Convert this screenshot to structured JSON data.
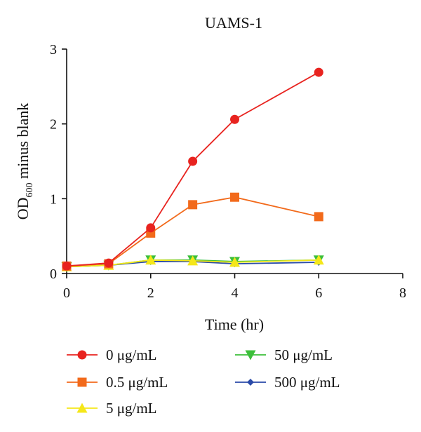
{
  "chart_data": {
    "type": "line",
    "title": "UAMS-1",
    "xlabel": "Time (hr)",
    "ylabel": {
      "main": "OD",
      "subscript": "600",
      "rest": " minus blank"
    },
    "xlim": [
      0,
      8
    ],
    "ylim": [
      0,
      3
    ],
    "xticks": [
      "0",
      "2",
      "4",
      "6",
      "8"
    ],
    "yticks": [
      "0",
      "1",
      "2",
      "3"
    ],
    "legend_position": "bottom",
    "series": [
      {
        "name": "0 μg/mL",
        "color": "#e8231f",
        "marker": "circle",
        "x": [
          0,
          1,
          2,
          3,
          4,
          6
        ],
        "y": [
          0.1,
          0.14,
          0.61,
          1.5,
          2.06,
          2.69
        ]
      },
      {
        "name": "0.5 μg/mL",
        "color": "#f26a1b",
        "marker": "square",
        "x": [
          0,
          1,
          2,
          3,
          4,
          6
        ],
        "y": [
          0.1,
          0.13,
          0.54,
          0.92,
          1.02,
          0.76
        ]
      },
      {
        "name": "5 μg/mL",
        "color": "#f5e71a",
        "marker": "triangle-up",
        "x": [
          0,
          1,
          2,
          3,
          4,
          6
        ],
        "y": [
          0.09,
          0.11,
          0.18,
          0.17,
          0.15,
          0.18
        ]
      },
      {
        "name": "50 μg/mL",
        "color": "#3cbf3a",
        "marker": "triangle-down",
        "x": [
          0,
          1,
          2,
          3,
          4,
          6
        ],
        "y": [
          0.09,
          0.11,
          0.18,
          0.18,
          0.16,
          0.18
        ]
      },
      {
        "name": "500 μg/mL",
        "color": "#2a4aa8",
        "marker": "diamond",
        "x": [
          0,
          1,
          2,
          3,
          4,
          6
        ],
        "y": [
          0.09,
          0.11,
          0.16,
          0.16,
          0.13,
          0.15
        ]
      }
    ]
  }
}
